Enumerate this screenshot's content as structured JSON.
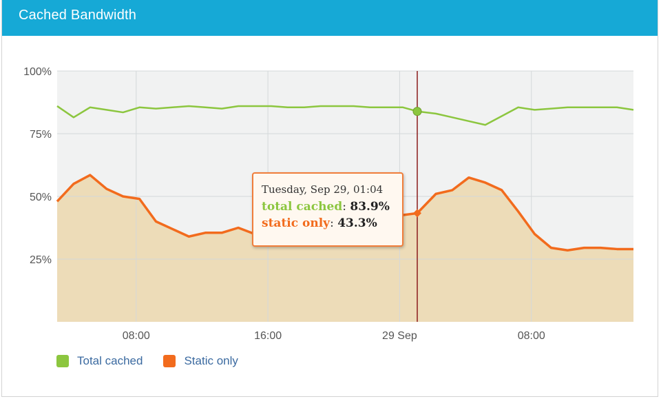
{
  "panel": {
    "title": "Cached Bandwidth"
  },
  "colors": {
    "header": "#16a9d6",
    "total_cached": "#8cc63f",
    "static_only": "#f26b1d",
    "static_fill": "#eddcb8",
    "plot_bg": "#f1f2f2",
    "crosshair": "#8b1a1a"
  },
  "tooltip": {
    "date": "Tuesday, Sep 29, 01:04",
    "total_label": "total cached",
    "total_value": "83.9%",
    "static_label": "static only",
    "static_value": "43.3%"
  },
  "chart_data": {
    "type": "line",
    "title": "Cached Bandwidth",
    "x_unit": "hours",
    "x_tick_labels": [
      "08:00",
      "16:00",
      "29 Sep",
      "08:00"
    ],
    "x_tick_hours": [
      8,
      16,
      24,
      32
    ],
    "y_tick_labels": [
      "100%",
      "75%",
      "50%",
      "25%"
    ],
    "ylim": [
      0,
      100
    ],
    "x_range_hours": [
      3.2,
      38.2
    ],
    "grid": true,
    "legend_position": "bottom-left",
    "crosshair_hour": 25.07,
    "series": [
      {
        "name": "Total cached",
        "style": "line",
        "hours": [
          3.2,
          4.2,
          5.2,
          6.2,
          7.2,
          8.2,
          9.2,
          10.2,
          11.2,
          12.2,
          13.2,
          14.2,
          15.2,
          16.2,
          17.2,
          18.2,
          19.2,
          20.2,
          21.2,
          22.2,
          23.2,
          24.2,
          25.07,
          26.2,
          27.2,
          28.2,
          29.2,
          30.2,
          31.2,
          32.2,
          33.2,
          34.2,
          35.2,
          36.2,
          37.2,
          38.2
        ],
        "values": [
          86,
          81.5,
          85.5,
          84.5,
          83.5,
          85.5,
          85,
          85.5,
          86,
          85.5,
          85,
          86,
          86,
          86,
          85.5,
          85.5,
          86,
          86,
          86,
          85.5,
          85.5,
          85.5,
          83.9,
          83,
          81.5,
          80,
          78.5,
          82,
          85.5,
          84.5,
          85,
          85.5,
          85.5,
          85.5,
          85.5,
          84.5
        ]
      },
      {
        "name": "Static only",
        "style": "area",
        "hours": [
          3.2,
          4.2,
          5.2,
          6.2,
          7.2,
          8.2,
          9.2,
          10.2,
          11.2,
          12.2,
          13.2,
          14.2,
          15.2,
          25.07,
          26.2,
          27.2,
          28.2,
          29.2,
          30.2,
          31.2,
          32.2,
          33.2,
          34.2,
          35.2,
          36.2,
          37.2,
          38.2
        ],
        "values": [
          48,
          55,
          58.5,
          53,
          50,
          49,
          40,
          37,
          34,
          35.5,
          35.5,
          37.5,
          35,
          43.3,
          51,
          52.5,
          57.5,
          55.5,
          52.5,
          44,
          35,
          29.5,
          28.5,
          29.5,
          29.5,
          29,
          29
        ]
      }
    ]
  }
}
